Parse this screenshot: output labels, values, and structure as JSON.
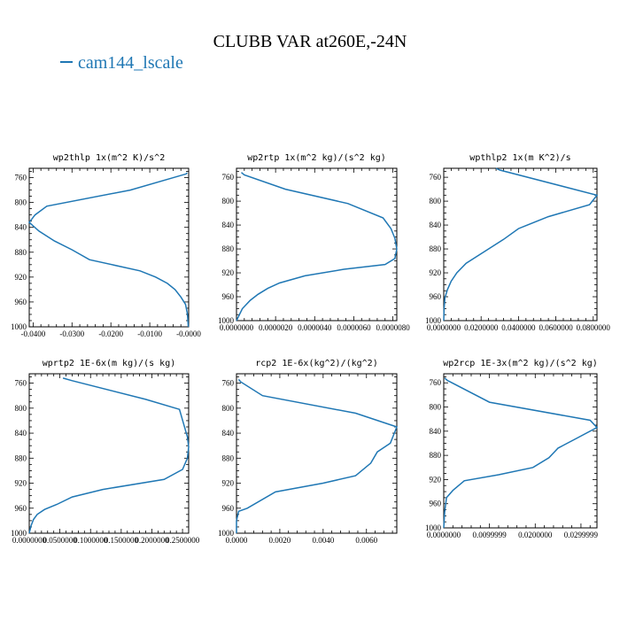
{
  "figure": {
    "title": "CLUBB VAR at260E,-24N",
    "legend_label": "cam144_lscale",
    "line_color": "#1f77b4"
  },
  "chart_data": [
    {
      "type": "line",
      "title": "wp2thlp  1x(m^2 K)/s^2",
      "xlim": [
        -0.041,
        0.0
      ],
      "ylim": [
        1000,
        745
      ],
      "x_ticks": [
        -0.04,
        -0.03,
        -0.02,
        -0.01,
        0.0
      ],
      "x_tick_labels": [
        "-0.0400",
        "-0.0300",
        "-0.0200",
        "-0.0100",
        "-0.0000"
      ],
      "y_ticks": [
        760,
        800,
        840,
        880,
        920,
        960,
        1000
      ],
      "y_tick_labels": [
        "760",
        "800",
        "840",
        "880",
        "920",
        "960",
        "1000"
      ],
      "series": [
        {
          "x": [
            -0.0004,
            -0.0006,
            -0.015,
            -0.0365,
            -0.0395,
            -0.041,
            -0.0385,
            -0.0345,
            -0.03,
            -0.0255,
            -0.0125,
            -0.0085,
            -0.0055,
            -0.0035,
            -0.002,
            -0.0008,
            -0.0003,
            -0.0001
          ],
          "y": [
            752,
            754,
            780,
            806,
            820,
            832,
            846,
            862,
            876,
            892,
            910,
            920,
            930,
            940,
            952,
            964,
            980,
            1000
          ]
        }
      ]
    },
    {
      "type": "line",
      "title": "wp2rtp  1x(m^2 kg)/(s^2 kg)",
      "xlim": [
        0.0,
        8.2e-06
      ],
      "ylim": [
        1000,
        745
      ],
      "x_ticks": [
        0.0,
        2e-06,
        4e-06,
        6e-06,
        8e-06
      ],
      "x_tick_labels": [
        "0.0000000",
        "0.0000020",
        "0.0000040",
        "0.0000060",
        "0.0000080"
      ],
      "y_ticks": [
        760,
        800,
        840,
        880,
        920,
        960,
        1000
      ],
      "y_tick_labels": [
        "760",
        "800",
        "840",
        "880",
        "920",
        "960",
        "1000"
      ],
      "series": [
        {
          "x": [
            2.5e-07,
            4e-07,
            2.5e-06,
            5.7e-06,
            7.5e-06,
            7.9e-06,
            8.1e-06,
            8.2e-06,
            8.1e-06,
            7.6e-06,
            5.5e-06,
            3.5e-06,
            2.2e-06,
            1.6e-06,
            1.1e-06,
            7e-07,
            3e-07,
            0.0
          ],
          "y": [
            752,
            756,
            780,
            804,
            828,
            846,
            862,
            880,
            896,
            906,
            914,
            925,
            937,
            946,
            956,
            966,
            980,
            1000
          ]
        }
      ]
    },
    {
      "type": "line",
      "title": "wpthlp2  1x(m K^2)/s",
      "xlim": [
        0.0,
        0.082
      ],
      "ylim": [
        1000,
        745
      ],
      "x_ticks": [
        0.0,
        0.02,
        0.04,
        0.06,
        0.08
      ],
      "x_tick_labels": [
        "0.0000000",
        "0.0200000",
        "0.0400000",
        "0.0600000",
        "0.0800000"
      ],
      "y_ticks": [
        760,
        800,
        840,
        880,
        920,
        960,
        1000
      ],
      "y_tick_labels": [
        "760",
        "800",
        "840",
        "880",
        "920",
        "960",
        "1000"
      ],
      "series": [
        {
          "x": [
            0.028,
            0.03,
            0.082,
            0.078,
            0.056,
            0.04,
            0.032,
            0.022,
            0.012,
            0.007,
            0.004,
            0.002,
            0.0006,
            0.0002,
            0.0
          ],
          "y": [
            745,
            748,
            790,
            806,
            826,
            846,
            864,
            884,
            904,
            920,
            934,
            948,
            962,
            980,
            1000
          ]
        }
      ]
    },
    {
      "type": "line",
      "title": "wprtp2  1E-6x(m kg)/(s kg)",
      "xlim": [
        0.0,
        0.26
      ],
      "ylim": [
        1000,
        745
      ],
      "x_ticks": [
        0.0,
        0.05,
        0.1,
        0.15,
        0.2,
        0.25
      ],
      "x_tick_labels": [
        "0.0000000",
        "0.0500000",
        "0.1000000",
        "0.1500000",
        "0.2000000",
        "0.2500000"
      ],
      "y_ticks": [
        760,
        800,
        840,
        880,
        920,
        960,
        1000
      ],
      "y_tick_labels": [
        "760",
        "800",
        "840",
        "880",
        "920",
        "960",
        "1000"
      ],
      "series": [
        {
          "x": [
            0.055,
            0.07,
            0.19,
            0.245,
            0.252,
            0.258,
            0.26,
            0.258,
            0.25,
            0.22,
            0.12,
            0.07,
            0.045,
            0.025,
            0.013,
            0.007,
            0.003,
            0.0
          ],
          "y": [
            752,
            756,
            786,
            802,
            826,
            846,
            862,
            880,
            898,
            914,
            930,
            942,
            954,
            962,
            970,
            978,
            988,
            1000
          ]
        }
      ]
    },
    {
      "type": "line",
      "title": "rcp2  1E-6x(kg^2)/(kg^2)",
      "xlim": [
        0.0,
        0.0074
      ],
      "ylim": [
        1000,
        745
      ],
      "x_ticks": [
        0.0,
        0.002,
        0.004,
        0.006
      ],
      "x_tick_labels": [
        "0.0000",
        "0.0020",
        "0.0040",
        "0.0060"
      ],
      "y_ticks": [
        760,
        800,
        840,
        880,
        920,
        960,
        1000
      ],
      "y_tick_labels": [
        "760",
        "800",
        "840",
        "880",
        "920",
        "960",
        "1000"
      ],
      "series": [
        {
          "x": [
            0.0001,
            0.0002,
            0.0012,
            0.0055,
            0.0074,
            0.0071,
            0.0065,
            0.0062,
            0.0055,
            0.004,
            0.0018,
            0.0005,
            0.0001,
            0.0,
            0.0
          ],
          "y": [
            754,
            758,
            780,
            808,
            830,
            856,
            870,
            888,
            908,
            920,
            934,
            960,
            965,
            980,
            1000
          ]
        }
      ]
    },
    {
      "type": "line",
      "title": "wp2rcp  1E-3x(m^2 kg)/(s^2 kg)",
      "xlim": [
        0.0,
        0.0335
      ],
      "ylim": [
        1000,
        745
      ],
      "x_ticks": [
        0.0,
        0.01,
        0.02,
        0.03
      ],
      "x_tick_labels": [
        "0.0000000",
        "0.0099999",
        "0.0200000",
        "0.0299999"
      ],
      "y_ticks": [
        760,
        800,
        840,
        880,
        920,
        960,
        1000
      ],
      "y_tick_labels": [
        "760",
        "800",
        "840",
        "880",
        "920",
        "960",
        "1000"
      ],
      "series": [
        {
          "x": [
            0.0002,
            0.0008,
            0.01,
            0.032,
            0.0335,
            0.029,
            0.025,
            0.023,
            0.0195,
            0.012,
            0.0045,
            0.002,
            0.0006,
            0.0002,
            0.0
          ],
          "y": [
            752,
            756,
            792,
            822,
            834,
            852,
            868,
            884,
            900,
            912,
            922,
            938,
            950,
            974,
            1000
          ]
        }
      ]
    }
  ]
}
